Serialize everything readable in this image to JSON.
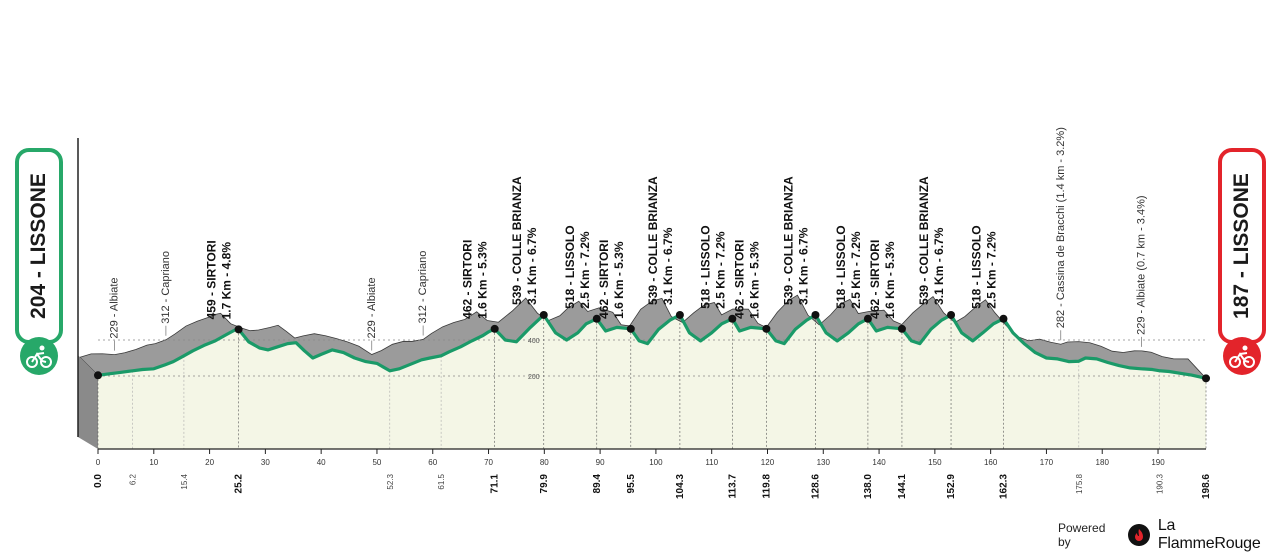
{
  "colors": {
    "climb_fill": "#9b9b9b",
    "base_fill": "#f4f6e6",
    "outline": "#1a9a68",
    "start": "#27a869",
    "finish": "#e3242b"
  },
  "start": {
    "label": "204 - LISSONE",
    "icon": "cyclist-icon"
  },
  "finish": {
    "label": "187 - LISSONE",
    "icon": "cyclist-icon"
  },
  "powered": {
    "prefix": "Powered by",
    "brand": "La FlammeRouge",
    "icon": "flame-logo-icon"
  },
  "chart_data": {
    "type": "area",
    "title": "",
    "xlabel": "",
    "ylabel": "",
    "xlim": [
      0,
      198.6
    ],
    "ylim": [
      0,
      600
    ],
    "x_ticks": [
      0,
      10,
      20,
      30,
      40,
      50,
      60,
      70,
      80,
      90,
      100,
      110,
      120,
      130,
      140,
      150,
      160,
      170,
      180,
      190
    ],
    "y_ticks": [
      200,
      400
    ],
    "profile": [
      [
        0,
        204
      ],
      [
        2,
        212
      ],
      [
        4,
        220
      ],
      [
        6.2,
        229
      ],
      [
        8,
        236
      ],
      [
        10,
        240
      ],
      [
        12,
        262
      ],
      [
        13.5,
        280
      ],
      [
        15.4,
        312
      ],
      [
        17,
        340
      ],
      [
        19,
        370
      ],
      [
        21,
        395
      ],
      [
        23,
        430
      ],
      [
        24.5,
        455
      ],
      [
        25.2,
        459
      ],
      [
        27,
        390
      ],
      [
        29,
        355
      ],
      [
        30.5,
        345
      ],
      [
        32,
        360
      ],
      [
        34,
        380
      ],
      [
        35.5,
        385
      ],
      [
        37,
        340
      ],
      [
        38.5,
        300
      ],
      [
        40,
        320
      ],
      [
        42,
        345
      ],
      [
        44,
        330
      ],
      [
        46,
        300
      ],
      [
        48,
        280
      ],
      [
        50,
        270
      ],
      [
        52.3,
        229
      ],
      [
        54,
        240
      ],
      [
        56,
        265
      ],
      [
        58,
        290
      ],
      [
        59.5,
        300
      ],
      [
        61.5,
        312
      ],
      [
        63,
        335
      ],
      [
        65,
        362
      ],
      [
        67,
        395
      ],
      [
        69,
        425
      ],
      [
        70,
        445
      ],
      [
        71.1,
        462
      ],
      [
        73,
        400
      ],
      [
        75,
        390
      ],
      [
        77.5,
        470
      ],
      [
        79.9,
        539
      ],
      [
        82,
        440
      ],
      [
        84,
        400
      ],
      [
        86,
        440
      ],
      [
        87.5,
        490
      ],
      [
        89.4,
        518
      ],
      [
        91,
        450
      ],
      [
        93,
        470
      ],
      [
        95.5,
        462
      ],
      [
        97,
        395
      ],
      [
        98.5,
        380
      ],
      [
        100.5,
        460
      ],
      [
        102.5,
        510
      ],
      [
        104.3,
        539
      ],
      [
        106,
        440
      ],
      [
        108,
        395
      ],
      [
        110,
        440
      ],
      [
        111.8,
        490
      ],
      [
        113.7,
        518
      ],
      [
        115,
        450
      ],
      [
        117,
        470
      ],
      [
        119.8,
        462
      ],
      [
        121.5,
        395
      ],
      [
        123,
        380
      ],
      [
        125,
        460
      ],
      [
        127,
        510
      ],
      [
        128.6,
        539
      ],
      [
        130.5,
        440
      ],
      [
        132.5,
        395
      ],
      [
        134.5,
        440
      ],
      [
        136.3,
        490
      ],
      [
        138.0,
        518
      ],
      [
        139.5,
        450
      ],
      [
        141.5,
        470
      ],
      [
        144.1,
        462
      ],
      [
        145.8,
        395
      ],
      [
        147.3,
        380
      ],
      [
        149.3,
        460
      ],
      [
        151.2,
        510
      ],
      [
        152.9,
        539
      ],
      [
        154.8,
        440
      ],
      [
        156.8,
        395
      ],
      [
        158.6,
        440
      ],
      [
        160.5,
        490
      ],
      [
        162.3,
        518
      ],
      [
        164,
        440
      ],
      [
        166,
        380
      ],
      [
        168,
        330
      ],
      [
        170,
        300
      ],
      [
        172,
        295
      ],
      [
        174,
        280
      ],
      [
        175.8,
        282
      ],
      [
        177,
        300
      ],
      [
        179,
        295
      ],
      [
        181,
        275
      ],
      [
        183,
        258
      ],
      [
        185,
        245
      ],
      [
        187,
        240
      ],
      [
        189,
        236
      ],
      [
        190.3,
        229
      ],
      [
        192,
        225
      ],
      [
        194,
        215
      ],
      [
        196,
        205
      ],
      [
        198.6,
        187
      ]
    ],
    "km_markers": [
      "0.0",
      "6.2",
      "15.4",
      "25.2",
      "52.3",
      "61.5",
      "71.1",
      "79.9",
      "89.4",
      "95.5",
      "104.3",
      "113.7",
      "119.8",
      "128.6",
      "138.0",
      "144.1",
      "152.9",
      "162.3",
      "175.8",
      "190.3",
      "198.6"
    ],
    "major_km": [
      "0.0",
      "25.2",
      "71.1",
      "79.9",
      "89.4",
      "95.5",
      "104.3",
      "113.7",
      "119.8",
      "128.6",
      "138.0",
      "144.1",
      "152.9",
      "162.3",
      "198.6"
    ],
    "points": [
      {
        "km": 6.2,
        "label": "229 - Albiate",
        "major": false
      },
      {
        "km": 15.4,
        "label": "312 - Capriano",
        "major": false
      },
      {
        "km": 25.2,
        "label": "459 - SIRTORI",
        "label2": "1.7 Km - 4.8%",
        "major": true
      },
      {
        "km": 52.3,
        "label": "229 - Albiate",
        "major": false
      },
      {
        "km": 61.5,
        "label": "312 - Capriano",
        "major": false
      },
      {
        "km": 71.1,
        "label": "462 - SIRTORI",
        "label2": "1.6 Km - 5.3%",
        "major": true
      },
      {
        "km": 79.9,
        "label": "539 - COLLE BRIANZA",
        "label2": "3.1 Km - 6.7%",
        "major": true
      },
      {
        "km": 89.4,
        "label": "518 - LISSOLO",
        "label2": "2.5 Km - 7.2%",
        "major": true
      },
      {
        "km": 95.5,
        "label": "462 - SIRTORI",
        "label2": "1.6 Km - 5.3%",
        "major": true
      },
      {
        "km": 104.3,
        "label": "539 - COLLE BRIANZA",
        "label2": "3.1 Km - 6.7%",
        "major": true
      },
      {
        "km": 113.7,
        "label": "518 - LISSOLO",
        "label2": "2.5 Km - 7.2%",
        "major": true
      },
      {
        "km": 119.8,
        "label": "462 - SIRTORI",
        "label2": "1.6 Km - 5.3%",
        "major": true
      },
      {
        "km": 128.6,
        "label": "539 - COLLE BRIANZA",
        "label2": "3.1 Km - 6.7%",
        "major": true
      },
      {
        "km": 138.0,
        "label": "518 - LISSOLO",
        "label2": "2.5 Km - 7.2%",
        "major": true
      },
      {
        "km": 144.1,
        "label": "462 - SIRTORI",
        "label2": "1.6 Km - 5.3%",
        "major": true
      },
      {
        "km": 152.9,
        "label": "539 - COLLE BRIANZA",
        "label2": "3.1 Km - 6.7%",
        "major": true
      },
      {
        "km": 162.3,
        "label": "518 - LISSOLO",
        "label2": "2.5 Km - 7.2%",
        "major": true
      },
      {
        "km": 175.8,
        "label": "282 - Cassina de Bracchi (1.4 km - 3.2%)",
        "major": false
      },
      {
        "km": 190.3,
        "label": "229 - Albiate (0.7 km - 3.4%)",
        "major": false
      }
    ]
  }
}
